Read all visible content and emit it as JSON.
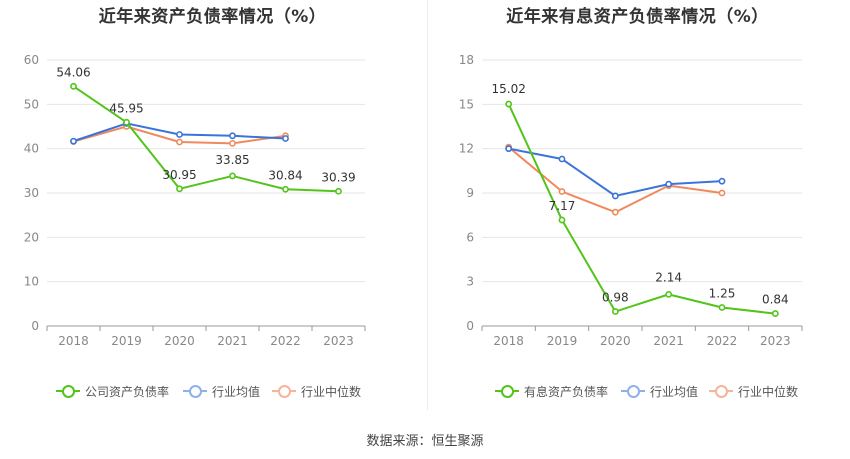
{
  "source": "数据来源：恒生聚源",
  "chart_data": [
    {
      "type": "line",
      "title": "近年来资产负债率情况（%）",
      "x": [
        "2018",
        "2019",
        "2020",
        "2021",
        "2022",
        "2023"
      ],
      "ylim": [
        0,
        60
      ],
      "yticks": [
        0,
        10,
        20,
        30,
        40,
        50,
        60
      ],
      "grid": true,
      "legend_position": "bottom",
      "series": [
        {
          "name": "公司资产负债率",
          "color": "#52c41a",
          "values": [
            54.06,
            45.95,
            30.95,
            33.85,
            30.84,
            30.39
          ],
          "labels": true
        },
        {
          "name": "行业均值",
          "color": "#3b74d8",
          "values": [
            41.7,
            45.7,
            43.2,
            42.9,
            42.3,
            null
          ],
          "labels": false
        },
        {
          "name": "行业中位数",
          "color": "#f08a5d",
          "values": [
            41.6,
            45.0,
            41.5,
            41.2,
            42.9,
            null
          ],
          "labels": false
        }
      ]
    },
    {
      "type": "line",
      "title": "近年来有息资产负债率情况（%）",
      "x": [
        "2018",
        "2019",
        "2020",
        "2021",
        "2022",
        "2023"
      ],
      "ylim": [
        0,
        18
      ],
      "yticks": [
        0,
        3,
        6,
        9,
        12,
        15,
        18
      ],
      "grid": true,
      "legend_position": "bottom",
      "series": [
        {
          "name": "有息资产负债率",
          "color": "#52c41a",
          "values": [
            15.02,
            7.17,
            0.98,
            2.14,
            1.25,
            0.84
          ],
          "labels": true
        },
        {
          "name": "行业均值",
          "color": "#3b74d8",
          "values": [
            12.0,
            11.3,
            8.8,
            9.6,
            9.8,
            null
          ],
          "labels": false
        },
        {
          "name": "行业中位数",
          "color": "#f08a5d",
          "values": [
            12.1,
            9.1,
            7.7,
            9.5,
            9.0,
            null
          ],
          "labels": false
        }
      ]
    }
  ]
}
